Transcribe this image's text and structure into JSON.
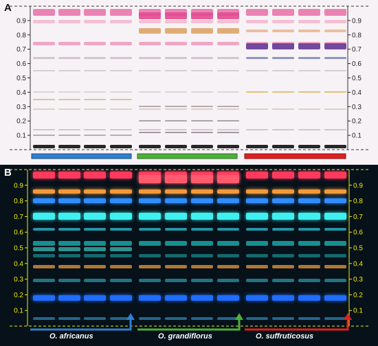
{
  "panels": [
    {
      "label": "A",
      "mode": "white-light"
    },
    {
      "label": "B",
      "mode": "UV-366"
    }
  ],
  "rf_ticks": [
    "0.9",
    "0.8",
    "0.7",
    "0.6",
    "0.5",
    "0.4",
    "0.3",
    "0.2",
    "0.1"
  ],
  "groups": [
    {
      "species": "O. africanus",
      "color": "#2f7fd0",
      "lanes": 4
    },
    {
      "species": "O. grandiflorus",
      "color": "#4cb13a",
      "lanes": 4
    },
    {
      "species": "O. suffruticosus",
      "color": "#e02020",
      "lanes": 4
    }
  ],
  "colors": {
    "plate_a_bg": "#f7f2f5",
    "plate_b_bg": "#06111a",
    "scale_a": "#222222",
    "scale_b": "#f4f000",
    "blue": "#2f7fd0",
    "green": "#4cb13a",
    "red": "#e02020"
  }
}
